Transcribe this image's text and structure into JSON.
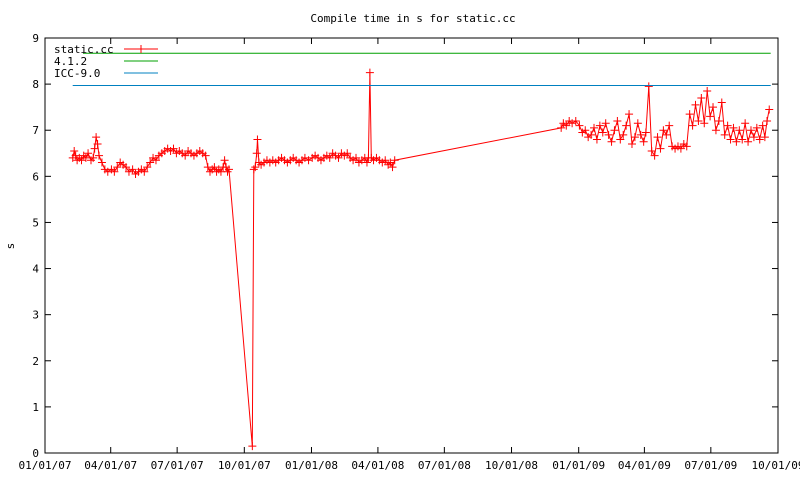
{
  "chart_data": {
    "type": "line",
    "title": "Compile time in s for static.cc",
    "xlabel": "",
    "ylabel": "s",
    "ylim": [
      0,
      9
    ],
    "xlim": [
      "2007-01-01",
      "2009-10-01"
    ],
    "x_tick_labels": [
      "01/01/07",
      "04/01/07",
      "07/01/07",
      "10/01/07",
      "01/01/08",
      "04/01/08",
      "07/01/08",
      "10/01/08",
      "01/01/09",
      "04/01/09",
      "07/01/09",
      "10/01/09"
    ],
    "y_tick_labels": [
      "0",
      "1",
      "2",
      "3",
      "4",
      "5",
      "6",
      "7",
      "8",
      "9"
    ],
    "grid": false,
    "legend_position": "top-left",
    "series": [
      {
        "name": "static.cc",
        "color": "#ff0000",
        "marker": "plus",
        "points": [
          [
            "2007-02-08",
            6.4
          ],
          [
            "2007-02-10",
            6.55
          ],
          [
            "2007-02-12",
            6.45
          ],
          [
            "2007-02-14",
            6.35
          ],
          [
            "2007-02-17",
            6.4
          ],
          [
            "2007-02-20",
            6.35
          ],
          [
            "2007-02-23",
            6.45
          ],
          [
            "2007-02-26",
            6.4
          ],
          [
            "2007-03-01",
            6.5
          ],
          [
            "2007-03-05",
            6.35
          ],
          [
            "2007-03-08",
            6.4
          ],
          [
            "2007-03-10",
            6.6
          ],
          [
            "2007-03-12",
            6.85
          ],
          [
            "2007-03-14",
            6.7
          ],
          [
            "2007-03-16",
            6.45
          ],
          [
            "2007-03-20",
            6.3
          ],
          [
            "2007-03-24",
            6.15
          ],
          [
            "2007-03-28",
            6.1
          ],
          [
            "2007-04-02",
            6.15
          ],
          [
            "2007-04-06",
            6.1
          ],
          [
            "2007-04-10",
            6.2
          ],
          [
            "2007-04-14",
            6.3
          ],
          [
            "2007-04-18",
            6.25
          ],
          [
            "2007-04-22",
            6.2
          ],
          [
            "2007-04-26",
            6.1
          ],
          [
            "2007-05-01",
            6.15
          ],
          [
            "2007-05-05",
            6.05
          ],
          [
            "2007-05-09",
            6.1
          ],
          [
            "2007-05-13",
            6.15
          ],
          [
            "2007-05-17",
            6.1
          ],
          [
            "2007-05-21",
            6.2
          ],
          [
            "2007-05-25",
            6.3
          ],
          [
            "2007-05-29",
            6.4
          ],
          [
            "2007-06-02",
            6.35
          ],
          [
            "2007-06-06",
            6.45
          ],
          [
            "2007-06-10",
            6.5
          ],
          [
            "2007-06-14",
            6.55
          ],
          [
            "2007-06-18",
            6.6
          ],
          [
            "2007-06-22",
            6.55
          ],
          [
            "2007-06-26",
            6.6
          ],
          [
            "2007-06-30",
            6.5
          ],
          [
            "2007-07-04",
            6.55
          ],
          [
            "2007-07-08",
            6.5
          ],
          [
            "2007-07-12",
            6.45
          ],
          [
            "2007-07-16",
            6.55
          ],
          [
            "2007-07-20",
            6.5
          ],
          [
            "2007-07-24",
            6.45
          ],
          [
            "2007-07-28",
            6.5
          ],
          [
            "2007-08-01",
            6.55
          ],
          [
            "2007-08-05",
            6.5
          ],
          [
            "2007-08-09",
            6.45
          ],
          [
            "2007-08-12",
            6.2
          ],
          [
            "2007-08-15",
            6.1
          ],
          [
            "2007-08-18",
            6.15
          ],
          [
            "2007-08-21",
            6.2
          ],
          [
            "2007-08-24",
            6.1
          ],
          [
            "2007-08-27",
            6.15
          ],
          [
            "2007-08-30",
            6.1
          ],
          [
            "2007-09-02",
            6.2
          ],
          [
            "2007-09-04",
            6.35
          ],
          [
            "2007-09-06",
            6.2
          ],
          [
            "2007-09-08",
            6.1
          ],
          [
            "2007-09-10",
            6.15
          ],
          [
            "2007-10-12",
            0.15
          ],
          [
            "2007-10-14",
            6.15
          ],
          [
            "2007-10-16",
            6.2
          ],
          [
            "2007-10-18",
            6.5
          ],
          [
            "2007-10-19",
            6.8
          ],
          [
            "2007-10-21",
            6.3
          ],
          [
            "2007-10-24",
            6.25
          ],
          [
            "2007-10-28",
            6.3
          ],
          [
            "2007-11-01",
            6.35
          ],
          [
            "2007-11-05",
            6.3
          ],
          [
            "2007-11-09",
            6.35
          ],
          [
            "2007-11-13",
            6.3
          ],
          [
            "2007-11-17",
            6.35
          ],
          [
            "2007-11-21",
            6.4
          ],
          [
            "2007-11-25",
            6.35
          ],
          [
            "2007-11-29",
            6.3
          ],
          [
            "2007-12-03",
            6.35
          ],
          [
            "2007-12-07",
            6.4
          ],
          [
            "2007-12-11",
            6.35
          ],
          [
            "2007-12-15",
            6.3
          ],
          [
            "2007-12-19",
            6.35
          ],
          [
            "2007-12-23",
            6.4
          ],
          [
            "2007-12-28",
            6.35
          ],
          [
            "2008-01-02",
            6.4
          ],
          [
            "2008-01-06",
            6.45
          ],
          [
            "2008-01-10",
            6.4
          ],
          [
            "2008-01-14",
            6.35
          ],
          [
            "2008-01-18",
            6.4
          ],
          [
            "2008-01-22",
            6.45
          ],
          [
            "2008-01-26",
            6.4
          ],
          [
            "2008-01-30",
            6.5
          ],
          [
            "2008-02-03",
            6.45
          ],
          [
            "2008-02-07",
            6.4
          ],
          [
            "2008-02-11",
            6.5
          ],
          [
            "2008-02-15",
            6.45
          ],
          [
            "2008-02-19",
            6.5
          ],
          [
            "2008-02-23",
            6.4
          ],
          [
            "2008-02-27",
            6.35
          ],
          [
            "2008-03-02",
            6.4
          ],
          [
            "2008-03-06",
            6.3
          ],
          [
            "2008-03-10",
            6.35
          ],
          [
            "2008-03-14",
            6.4
          ],
          [
            "2008-03-17",
            6.3
          ],
          [
            "2008-03-19",
            6.4
          ],
          [
            "2008-03-21",
            8.25
          ],
          [
            "2008-03-23",
            6.4
          ],
          [
            "2008-03-26",
            6.35
          ],
          [
            "2008-03-30",
            6.4
          ],
          [
            "2008-04-03",
            6.35
          ],
          [
            "2008-04-07",
            6.3
          ],
          [
            "2008-04-11",
            6.35
          ],
          [
            "2008-04-15",
            6.25
          ],
          [
            "2008-04-18",
            6.3
          ],
          [
            "2008-04-21",
            6.2
          ],
          [
            "2008-04-24",
            6.35
          ],
          [
            "2008-12-08",
            7.05
          ],
          [
            "2008-12-11",
            7.15
          ],
          [
            "2008-12-15",
            7.1
          ],
          [
            "2008-12-19",
            7.2
          ],
          [
            "2008-12-23",
            7.15
          ],
          [
            "2008-12-28",
            7.2
          ],
          [
            "2009-01-02",
            7.1
          ],
          [
            "2009-01-06",
            6.95
          ],
          [
            "2009-01-10",
            7.0
          ],
          [
            "2009-01-14",
            6.85
          ],
          [
            "2009-01-18",
            6.9
          ],
          [
            "2009-01-22",
            7.05
          ],
          [
            "2009-01-26",
            6.8
          ],
          [
            "2009-01-30",
            7.1
          ],
          [
            "2009-02-03",
            6.95
          ],
          [
            "2009-02-07",
            7.15
          ],
          [
            "2009-02-11",
            6.9
          ],
          [
            "2009-02-15",
            6.75
          ],
          [
            "2009-02-19",
            7.0
          ],
          [
            "2009-02-23",
            7.2
          ],
          [
            "2009-02-27",
            6.8
          ],
          [
            "2009-03-03",
            6.9
          ],
          [
            "2009-03-07",
            7.1
          ],
          [
            "2009-03-11",
            7.35
          ],
          [
            "2009-03-15",
            6.7
          ],
          [
            "2009-03-19",
            6.85
          ],
          [
            "2009-03-23",
            7.15
          ],
          [
            "2009-03-27",
            6.9
          ],
          [
            "2009-03-31",
            6.75
          ],
          [
            "2009-04-03",
            6.95
          ],
          [
            "2009-04-07",
            7.95
          ],
          [
            "2009-04-11",
            6.55
          ],
          [
            "2009-04-15",
            6.45
          ],
          [
            "2009-04-19",
            6.85
          ],
          [
            "2009-04-23",
            6.6
          ],
          [
            "2009-04-27",
            7.0
          ],
          [
            "2009-05-01",
            6.9
          ],
          [
            "2009-05-05",
            7.1
          ],
          [
            "2009-05-09",
            6.65
          ],
          [
            "2009-05-13",
            6.6
          ],
          [
            "2009-05-17",
            6.65
          ],
          [
            "2009-05-21",
            6.6
          ],
          [
            "2009-05-25",
            6.7
          ],
          [
            "2009-05-29",
            6.65
          ],
          [
            "2009-06-02",
            7.35
          ],
          [
            "2009-06-06",
            7.1
          ],
          [
            "2009-06-10",
            7.55
          ],
          [
            "2009-06-14",
            7.2
          ],
          [
            "2009-06-18",
            7.7
          ],
          [
            "2009-06-22",
            7.15
          ],
          [
            "2009-06-26",
            7.85
          ],
          [
            "2009-06-30",
            7.3
          ],
          [
            "2009-07-04",
            7.5
          ],
          [
            "2009-07-08",
            7.0
          ],
          [
            "2009-07-12",
            7.2
          ],
          [
            "2009-07-16",
            7.6
          ],
          [
            "2009-07-20",
            6.9
          ],
          [
            "2009-07-24",
            7.1
          ],
          [
            "2009-07-28",
            6.8
          ],
          [
            "2009-08-01",
            7.05
          ],
          [
            "2009-08-05",
            6.75
          ],
          [
            "2009-08-09",
            7.0
          ],
          [
            "2009-08-13",
            6.8
          ],
          [
            "2009-08-17",
            7.15
          ],
          [
            "2009-08-21",
            6.75
          ],
          [
            "2009-08-25",
            7.0
          ],
          [
            "2009-08-29",
            6.85
          ],
          [
            "2009-09-02",
            7.05
          ],
          [
            "2009-09-06",
            6.8
          ],
          [
            "2009-09-10",
            7.1
          ],
          [
            "2009-09-13",
            6.85
          ],
          [
            "2009-09-16",
            7.2
          ],
          [
            "2009-09-19",
            7.45
          ]
        ]
      },
      {
        "name": "4.1.2",
        "color": "#00a000",
        "marker": "none",
        "points": [
          [
            "2007-02-22",
            8.67
          ],
          [
            "2009-09-21",
            8.67
          ]
        ]
      },
      {
        "name": "ICC-9.0",
        "color": "#0080c0",
        "marker": "none",
        "points": [
          [
            "2007-02-08",
            7.97
          ],
          [
            "2009-09-21",
            7.97
          ]
        ]
      }
    ]
  }
}
